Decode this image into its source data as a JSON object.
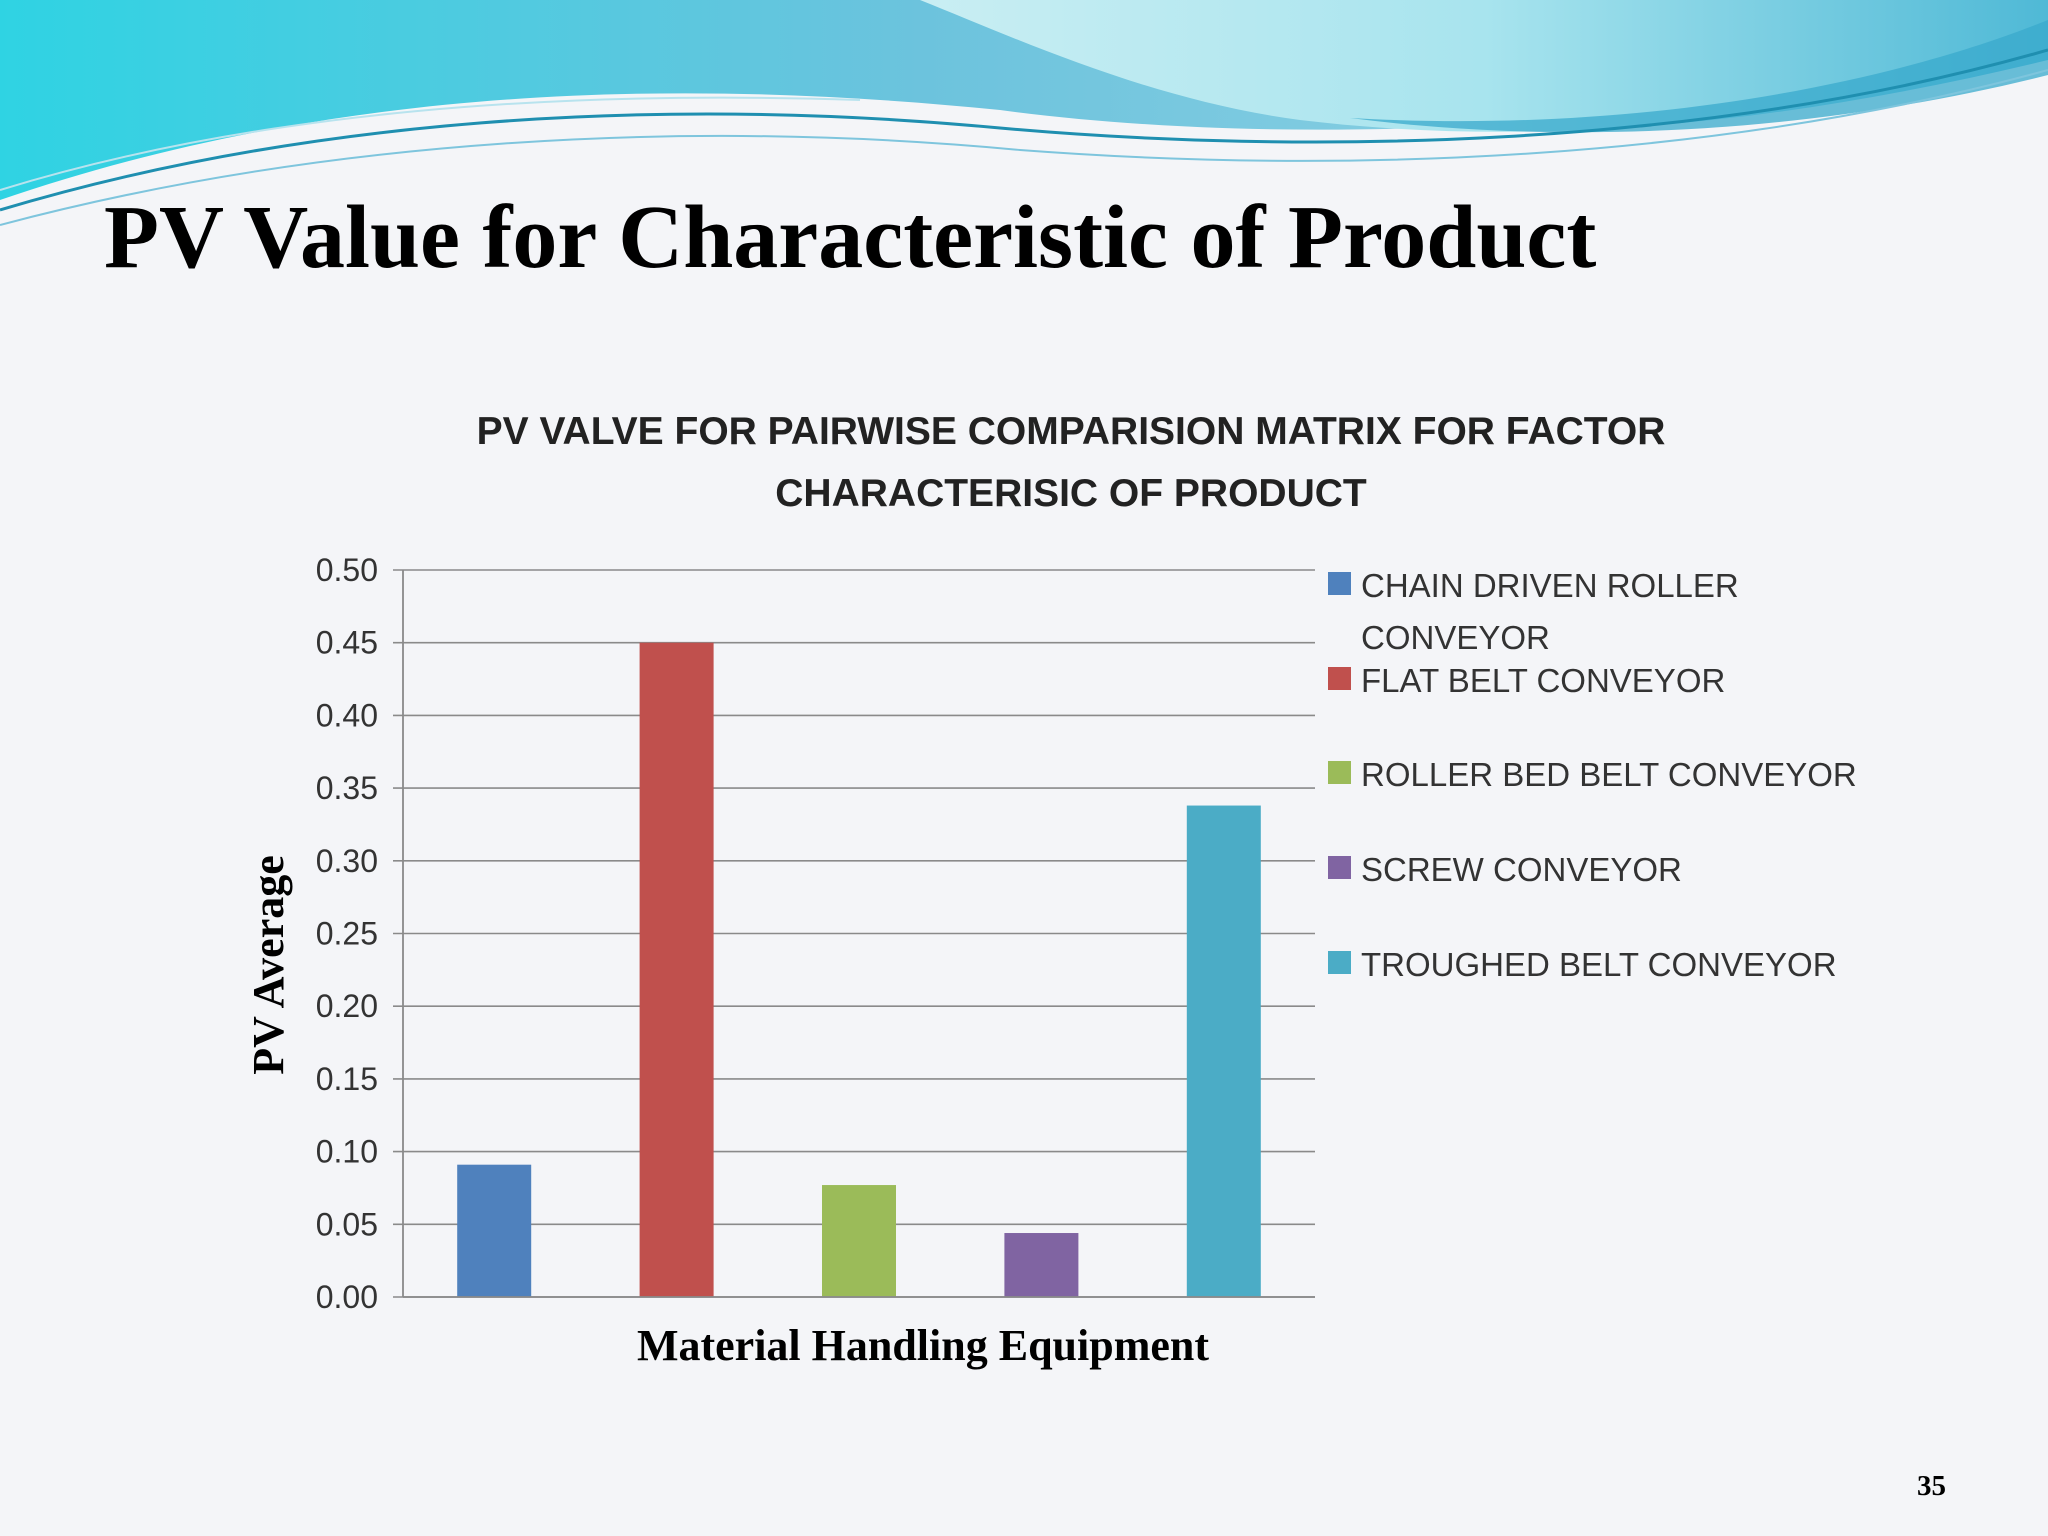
{
  "slide": {
    "title": "PV Value for Characteristic of Product",
    "page_number": "35"
  },
  "chart_data": {
    "type": "bar",
    "title_lines": [
      "PV VALVE FOR PAIRWISE COMPARISION MATRIX FOR FACTOR",
      "CHARACTERISIC OF PRODUCT"
    ],
    "xlabel": "Material Handling Equipment",
    "ylabel": "PV Average",
    "ylim": [
      0,
      0.5
    ],
    "yticks": [
      "0.00",
      "0.05",
      "0.10",
      "0.15",
      "0.20",
      "0.25",
      "0.30",
      "0.35",
      "0.40",
      "0.45",
      "0.50"
    ],
    "grid": true,
    "legend_position": "right",
    "series": [
      {
        "legend_lines": [
          "CHAIN DRIVEN ROLLER",
          "CONVEYOR"
        ],
        "value": 0.091,
        "color": "#4f81bd"
      },
      {
        "legend_lines": [
          "FLAT BELT  CONVEYOR"
        ],
        "value": 0.45,
        "color": "#c0504d"
      },
      {
        "legend_lines": [
          "ROLLER BED BELT CONVEYOR"
        ],
        "value": 0.077,
        "color": "#9bbb59"
      },
      {
        "legend_lines": [
          "SCREW CONVEYOR"
        ],
        "value": 0.044,
        "color": "#8064a2"
      },
      {
        "legend_lines": [
          "TROUGHED BELT CONVEYOR"
        ],
        "value": 0.338,
        "color": "#4bacc6"
      }
    ]
  }
}
